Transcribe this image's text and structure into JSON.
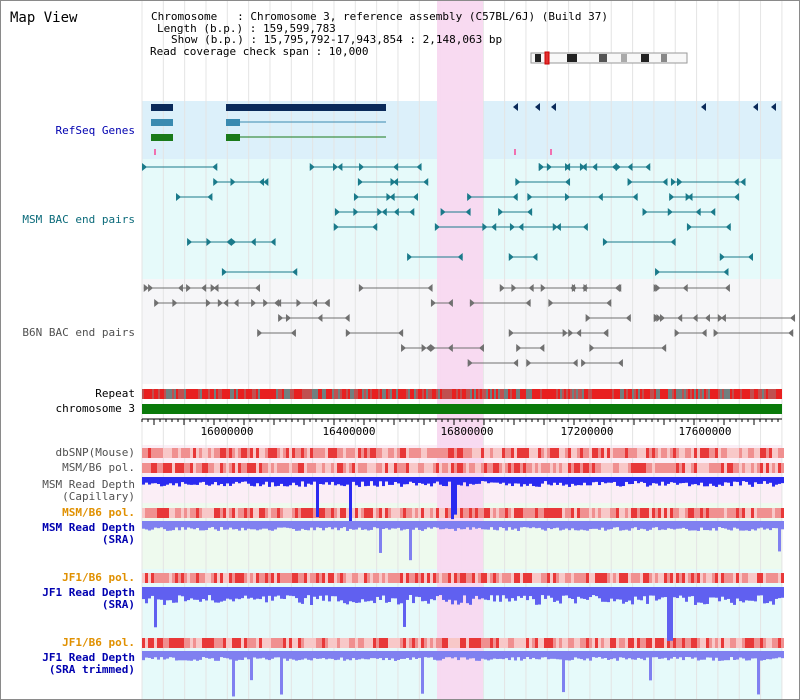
{
  "view_title": "Map View",
  "info": {
    "chromosome": "Chromosome   : Chromosome 3, reference assembly (C57BL/6J) (Build 37)",
    "length": "Length (b.p.) : 159,599,783",
    "show": "Show (b.p.) : 15,795,792-17,943,854 : 2,148,063 bp",
    "coverage": "Read coverage check span : 10,000"
  },
  "axis_ticks": [
    "16000000",
    "16400000",
    "16800000",
    "17200000",
    "17600000"
  ],
  "tracks": {
    "refseq": "RefSeq Genes",
    "msm_bac": "MSM BAC end pairs",
    "b6n_bac": "B6N BAC end pairs",
    "repeat": "Repeat",
    "chromosome": "chromosome 3",
    "dbsnp": "dbSNP(Mouse)",
    "msm_b6_pol": "MSM/B6 pol.",
    "msm_depth_cap_1": "MSM Read Depth",
    "msm_depth_cap_2": "(Capillary)",
    "msm_b6_pol_sra": "MSM/B6 pol.",
    "msm_depth_sra_1": "MSM Read Depth",
    "msm_depth_sra_2": "(SRA)",
    "jf1_b6_pol": "JF1/B6 pol.",
    "jf1_depth_sra_1": "JF1 Read Depth",
    "jf1_depth_sra_2": "(SRA)",
    "jf1_b6_pol_2": "JF1/B6 pol.",
    "jf1_depth_trim_1": "JF1 Read Depth",
    "jf1_depth_trim_2": "(SRA trimmed)"
  },
  "colors": {
    "highlight": "#f8d8f0",
    "gene": "#0a2a5a",
    "gene_mid": "#3a8ab0",
    "gene_green": "#1a7a1a",
    "msm_bac": "#1a7a8a",
    "b6n_bac": "#707070",
    "chromosome_bar": "#0a7a0a",
    "depth_blue": "#2020e0",
    "pol_red": "#e83030",
    "label_blue": "#0000b0",
    "label_teal": "#0a6a7a",
    "label_orange": "#e09000"
  }
}
